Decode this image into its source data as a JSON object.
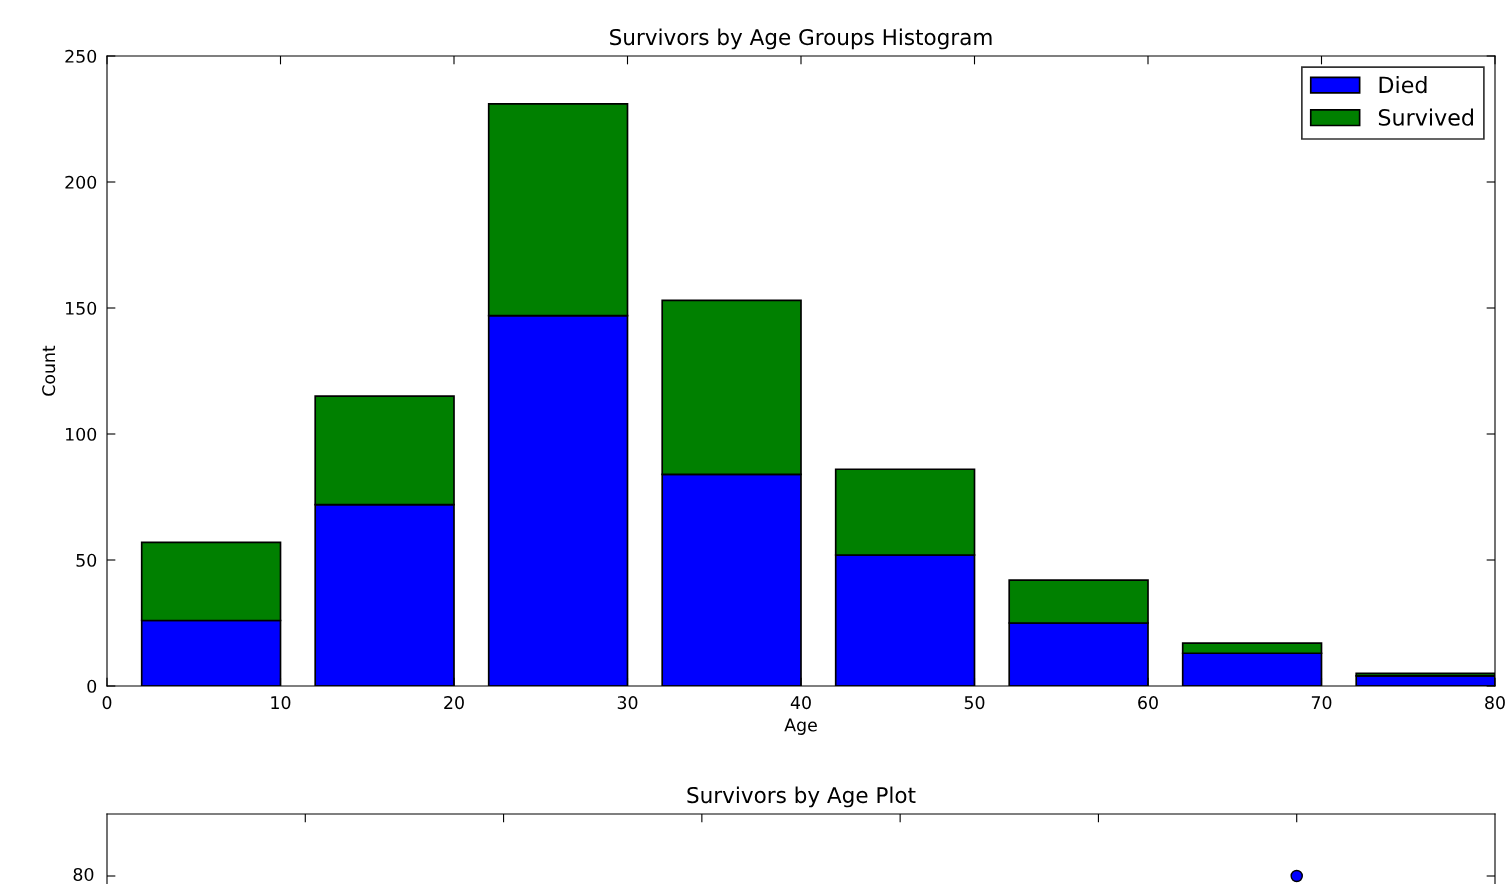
{
  "chart_data": [
    {
      "type": "bar",
      "title": "Survivors by Age Groups Histogram",
      "xlabel": "Age",
      "ylabel": "Count",
      "stacked": true,
      "x": [
        6,
        16,
        26,
        36,
        46,
        56,
        66,
        76
      ],
      "series": [
        {
          "name": "Died",
          "color": "#0000ff",
          "values": [
            26,
            72,
            147,
            84,
            52,
            25,
            13,
            4
          ]
        },
        {
          "name": "Survived",
          "color": "#008000",
          "values": [
            31,
            43,
            84,
            69,
            34,
            17,
            4,
            1
          ]
        }
      ],
      "xlim": [
        0,
        80
      ],
      "xticks": [
        0,
        10,
        20,
        30,
        40,
        50,
        60,
        70,
        80
      ],
      "ylim": [
        0,
        250
      ],
      "yticks": [
        0,
        50,
        100,
        150,
        200,
        250
      ],
      "legend": "top right",
      "grid": false
    },
    {
      "type": "other",
      "title": "Survivors by Age Plot",
      "annotations": [
        "80"
      ]
    }
  ]
}
